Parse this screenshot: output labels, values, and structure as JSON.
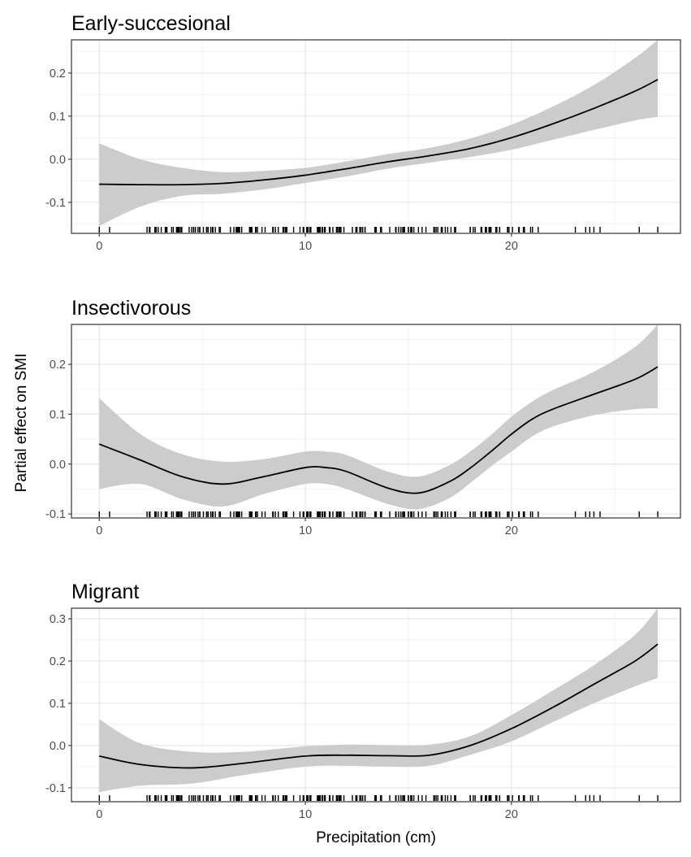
{
  "figure": {
    "ylabel": "Partial effect on SMI",
    "xlabel": "Precipitation (cm)"
  },
  "chart_data": [
    {
      "type": "line",
      "title": "Early-succesional",
      "xlabel": "Precipitation (cm)",
      "ylabel": "Partial effect on SMI",
      "xlim": [
        -1.35,
        28.2
      ],
      "ylim": [
        -0.172,
        0.277
      ],
      "x_ticks": [
        0,
        10,
        20
      ],
      "x_tick_labels": [
        "0",
        "10",
        "20"
      ],
      "y_ticks": [
        -0.1,
        0.0,
        0.1,
        0.2
      ],
      "y_tick_labels": [
        "-0.1",
        "0.0",
        "0.1",
        "0.2"
      ],
      "grid": true,
      "series": [
        {
          "x": [
            0,
            2,
            4,
            6,
            8,
            10,
            12,
            14,
            16,
            18,
            20,
            22,
            24,
            26,
            27.1
          ],
          "y": [
            -0.058,
            -0.059,
            -0.059,
            -0.056,
            -0.048,
            -0.037,
            -0.022,
            -0.006,
            0.008,
            0.025,
            0.05,
            0.082,
            0.118,
            0.158,
            0.185
          ],
          "lower": [
            -0.155,
            -0.11,
            -0.085,
            -0.08,
            -0.07,
            -0.055,
            -0.04,
            -0.022,
            -0.008,
            0.005,
            0.022,
            0.045,
            0.068,
            0.09,
            0.098
          ],
          "upper": [
            0.037,
            0.0,
            -0.02,
            -0.03,
            -0.027,
            -0.02,
            -0.005,
            0.012,
            0.026,
            0.048,
            0.08,
            0.122,
            0.172,
            0.235,
            0.277
          ]
        }
      ]
    },
    {
      "type": "line",
      "title": "Insectivorous",
      "xlabel": "Precipitation (cm)",
      "ylabel": "Partial effect on SMI",
      "xlim": [
        -1.35,
        28.2
      ],
      "ylim": [
        -0.108,
        0.28
      ],
      "x_ticks": [
        0,
        10,
        20
      ],
      "x_tick_labels": [
        "0",
        "10",
        "20"
      ],
      "y_ticks": [
        -0.1,
        0.0,
        0.1,
        0.2
      ],
      "y_tick_labels": [
        "-0.1",
        "0.0",
        "0.1",
        "0.2"
      ],
      "grid": true,
      "series": [
        {
          "x": [
            0,
            2,
            4,
            6,
            8,
            10,
            11,
            12,
            14,
            15.5,
            17,
            18,
            19,
            20,
            21,
            22,
            24,
            26,
            27.1
          ],
          "y": [
            0.04,
            0.008,
            -0.025,
            -0.04,
            -0.025,
            -0.007,
            -0.007,
            -0.015,
            -0.048,
            -0.058,
            -0.035,
            -0.008,
            0.025,
            0.06,
            0.09,
            0.11,
            0.14,
            0.17,
            0.195
          ],
          "lower": [
            -0.05,
            -0.04,
            -0.07,
            -0.085,
            -0.06,
            -0.04,
            -0.04,
            -0.05,
            -0.08,
            -0.09,
            -0.068,
            -0.038,
            -0.005,
            0.025,
            0.055,
            0.075,
            0.098,
            0.11,
            0.112
          ],
          "upper": [
            0.132,
            0.06,
            0.02,
            0.005,
            0.01,
            0.025,
            0.025,
            0.018,
            -0.015,
            -0.025,
            -0.002,
            0.025,
            0.058,
            0.095,
            0.125,
            0.148,
            0.185,
            0.235,
            0.28
          ]
        }
      ]
    },
    {
      "type": "line",
      "title": "Migrant",
      "xlabel": "Precipitation (cm)",
      "ylabel": "Partial effect on SMI",
      "xlim": [
        -1.35,
        28.2
      ],
      "ylim": [
        -0.133,
        0.325
      ],
      "x_ticks": [
        0,
        10,
        20
      ],
      "x_tick_labels": [
        "0",
        "10",
        "20"
      ],
      "y_ticks": [
        -0.1,
        0.0,
        0.1,
        0.2,
        0.3
      ],
      "y_tick_labels": [
        "-0.1",
        "0.0",
        "0.1",
        "0.2",
        "0.3"
      ],
      "grid": true,
      "series": [
        {
          "x": [
            0,
            2,
            4.5,
            7,
            10,
            12,
            14,
            16,
            18,
            20,
            22,
            24,
            26,
            27.1
          ],
          "y": [
            -0.025,
            -0.045,
            -0.053,
            -0.042,
            -0.025,
            -0.023,
            -0.024,
            -0.023,
            0.0,
            0.04,
            0.09,
            0.145,
            0.2,
            0.24
          ],
          "lower": [
            -0.11,
            -0.095,
            -0.09,
            -0.07,
            -0.05,
            -0.048,
            -0.05,
            -0.048,
            -0.022,
            0.01,
            0.055,
            0.1,
            0.14,
            0.16
          ],
          "upper": [
            0.062,
            0.005,
            -0.015,
            -0.015,
            -0.002,
            0.002,
            0.001,
            0.002,
            0.022,
            0.072,
            0.13,
            0.19,
            0.262,
            0.325
          ]
        }
      ]
    }
  ]
}
